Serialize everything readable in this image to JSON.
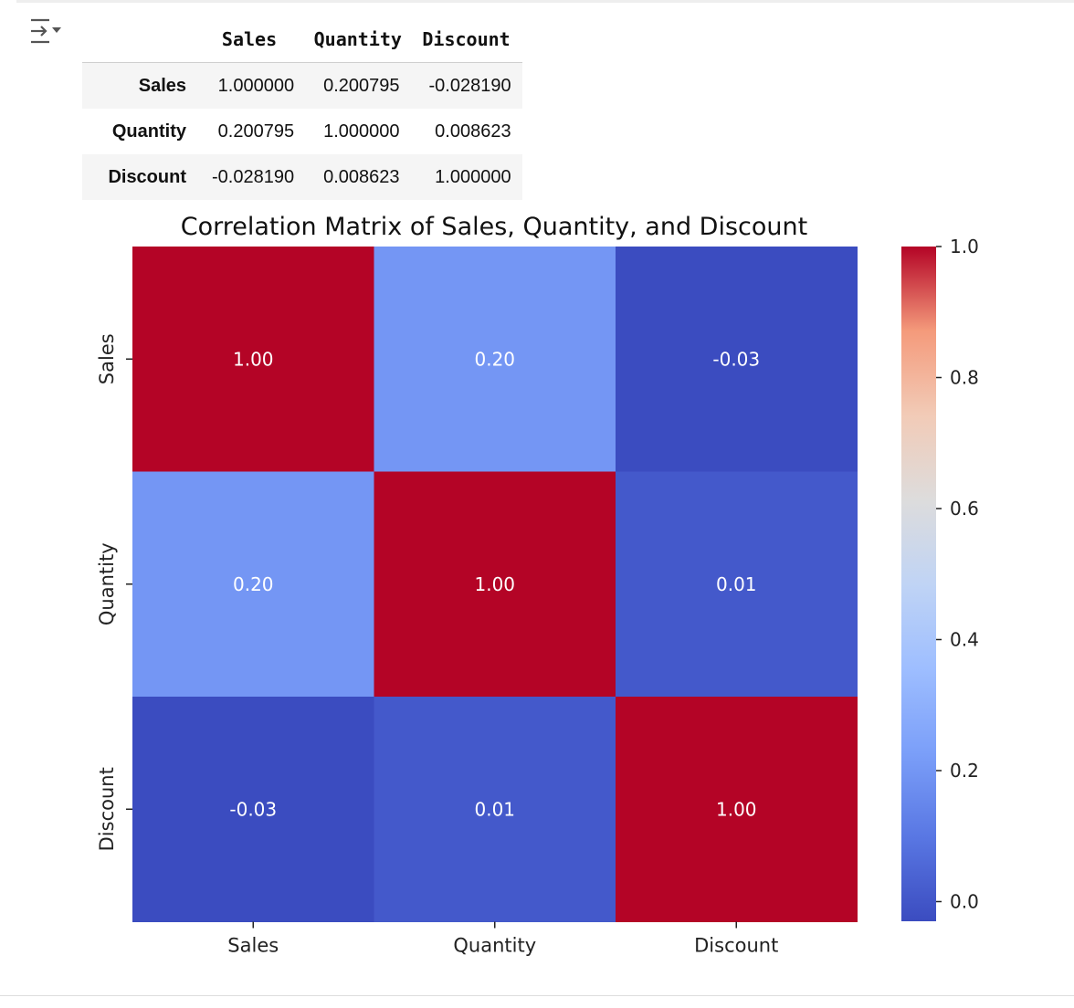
{
  "icons": {
    "output_toggle": "output-collapse-icon"
  },
  "table": {
    "columns": [
      "Sales",
      "Quantity",
      "Discount"
    ],
    "rows": [
      {
        "label": "Sales",
        "cells": [
          "1.000000",
          "0.200795",
          "-0.028190"
        ]
      },
      {
        "label": "Quantity",
        "cells": [
          "0.200795",
          "1.000000",
          "0.008623"
        ]
      },
      {
        "label": "Discount",
        "cells": [
          "-0.028190",
          "0.008623",
          "1.000000"
        ]
      }
    ]
  },
  "chart_data": {
    "type": "heatmap",
    "title": "Correlation Matrix of Sales, Quantity, and Discount",
    "x_categories": [
      "Sales",
      "Quantity",
      "Discount"
    ],
    "y_categories": [
      "Sales",
      "Quantity",
      "Discount"
    ],
    "values": [
      [
        1.0,
        0.2,
        -0.03
      ],
      [
        0.2,
        1.0,
        0.01
      ],
      [
        -0.03,
        0.01,
        1.0
      ]
    ],
    "annotations": [
      [
        "1.00",
        "0.20",
        "-0.03"
      ],
      [
        "0.20",
        "1.00",
        "0.01"
      ],
      [
        "-0.03",
        "0.01",
        "1.00"
      ]
    ],
    "colormap": "coolwarm",
    "colorbar": {
      "range": [
        -0.03,
        1.0
      ],
      "ticks": [
        "0.0",
        "0.2",
        "0.4",
        "0.6",
        "0.8",
        "1.0"
      ],
      "tick_values": [
        0.0,
        0.2,
        0.4,
        0.6,
        0.8,
        1.0
      ]
    },
    "grid": false
  }
}
